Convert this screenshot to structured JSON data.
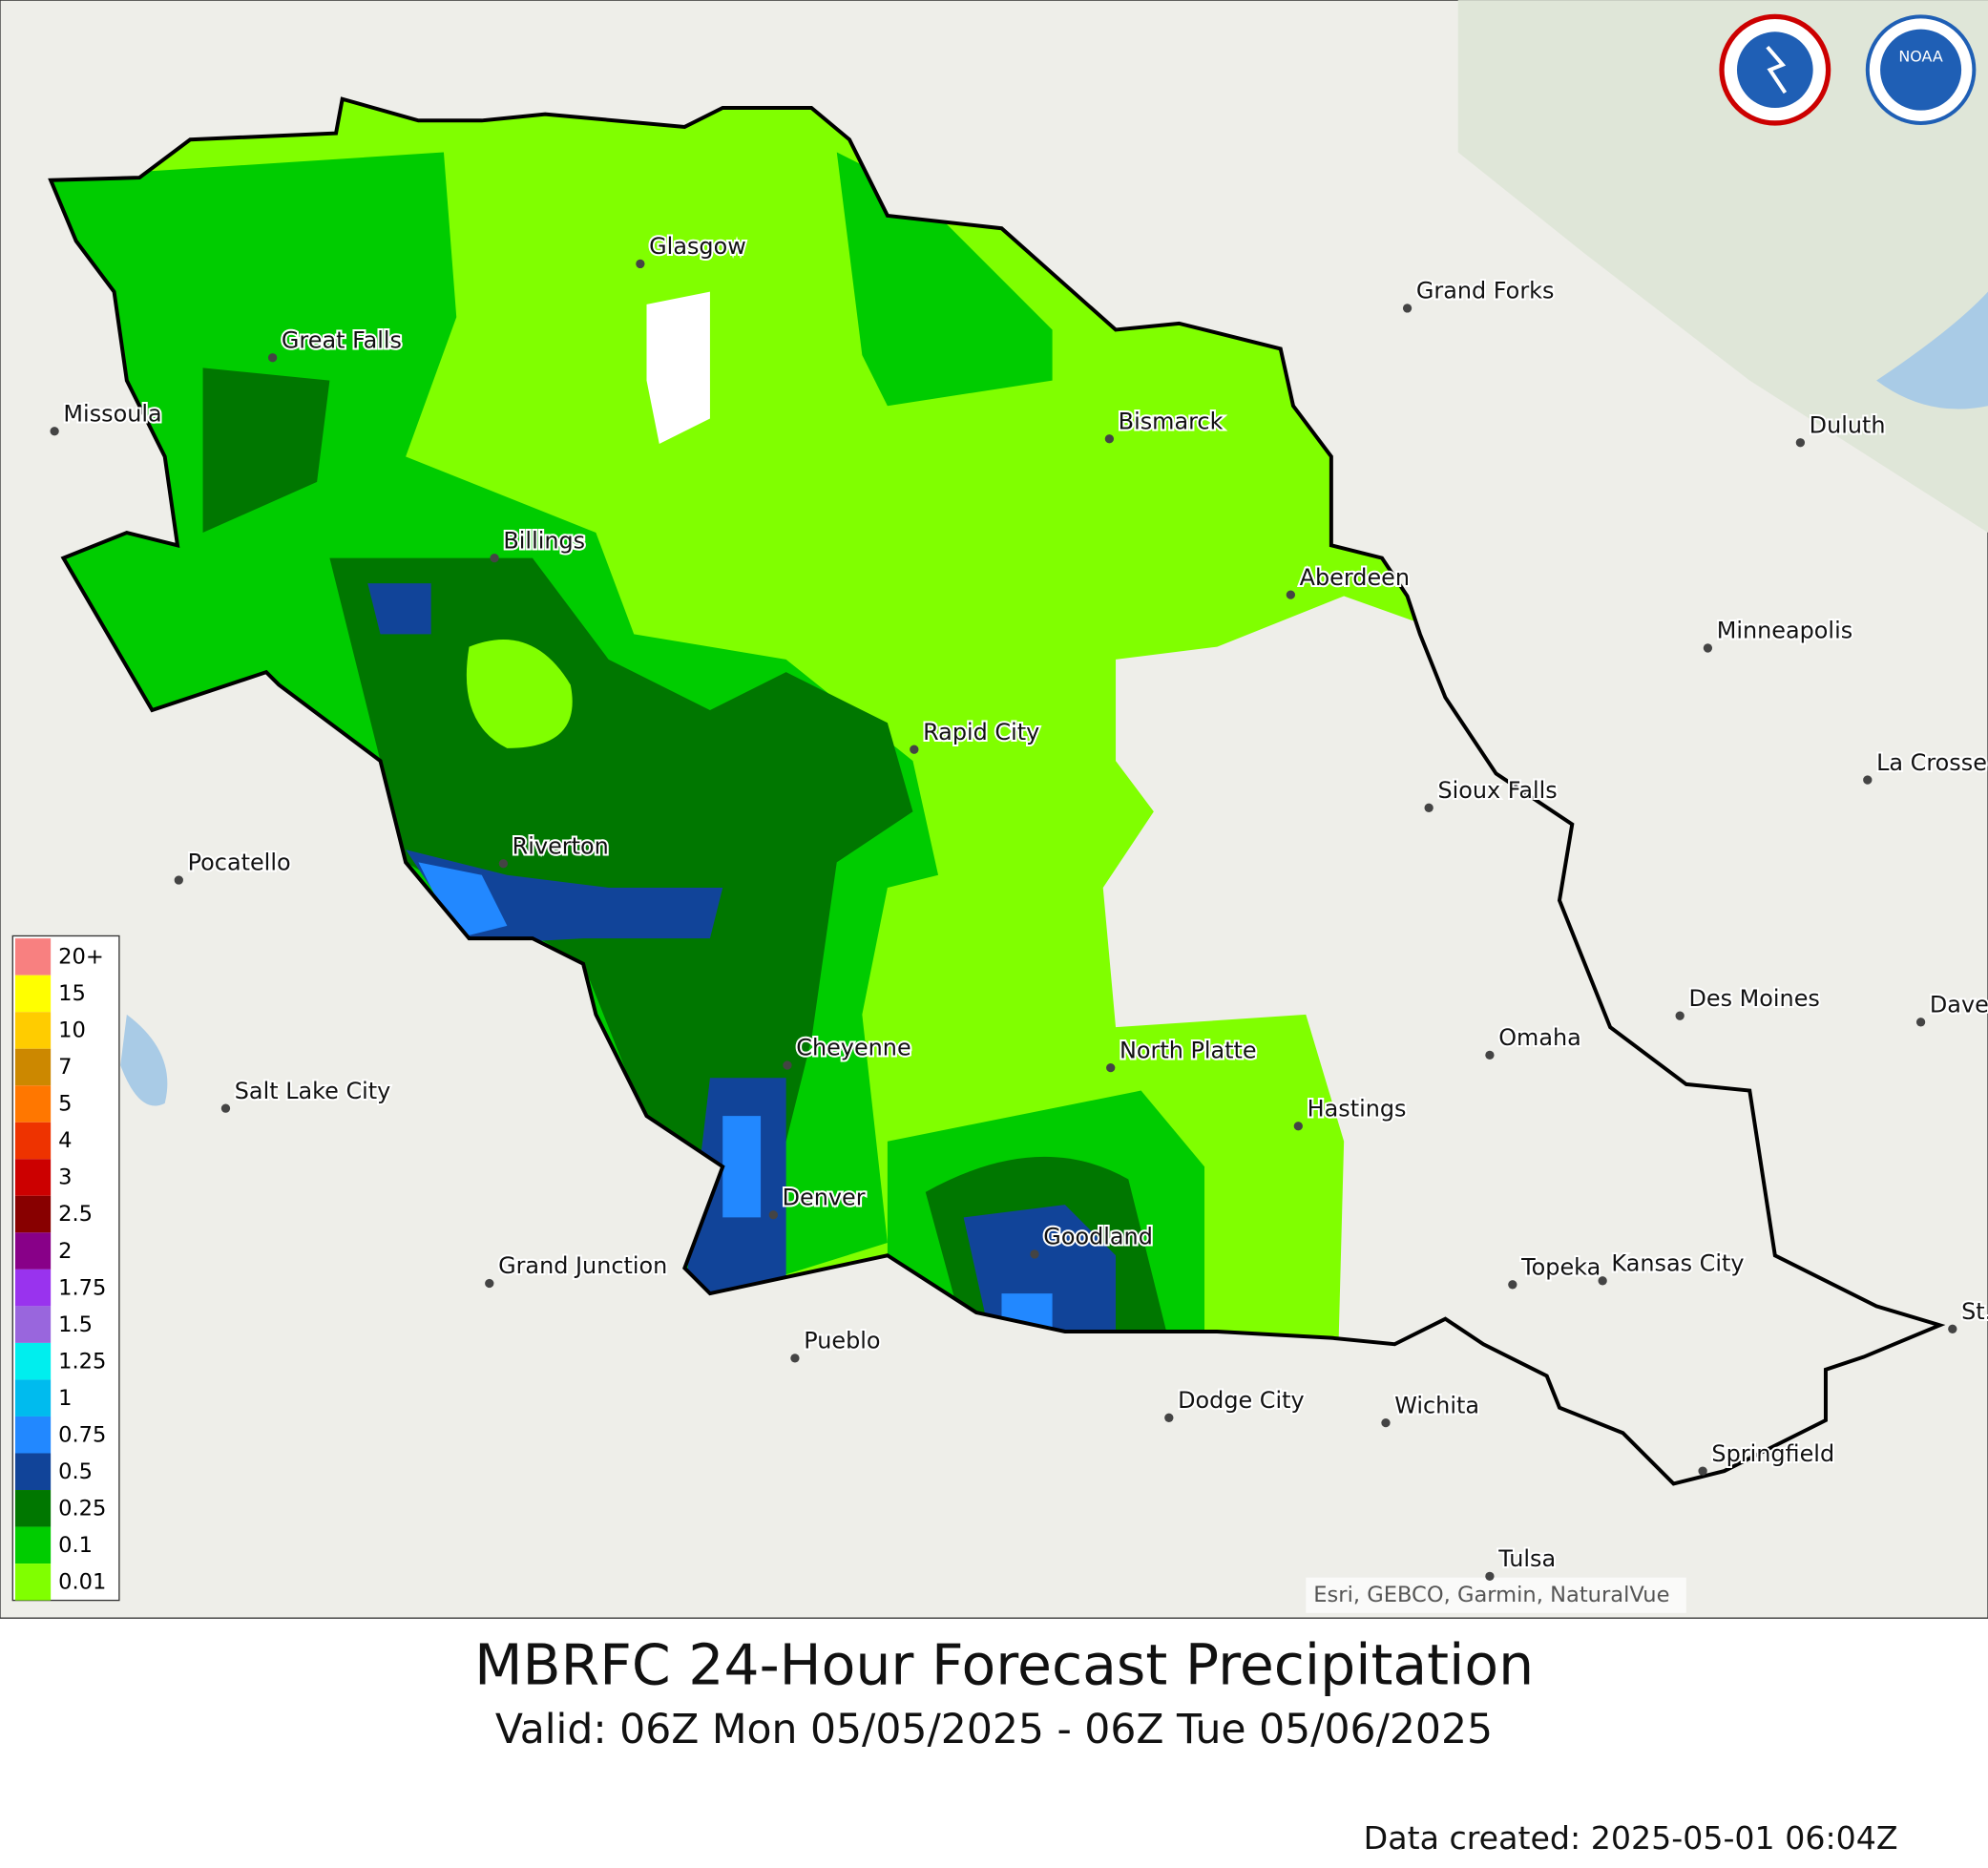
{
  "map": {
    "title": "MBRFC 24-Hour Forecast Precipitation",
    "subtitle": "Valid: 06Z Mon 05/05/2025 - 06Z Tue 05/06/2025",
    "data_created": "Data created: 2025-05-01 06:04Z",
    "attribution": "Esri, GEBCO, Garmin, NaturalVue",
    "cities": [
      "Glasgow",
      "Grand Forks",
      "Great Falls",
      "Missoula",
      "Bismarck",
      "Duluth",
      "Billings",
      "Aberdeen",
      "Minneapolis",
      "Rapid City",
      "Sioux Falls",
      "La Crosse",
      "Riverton",
      "Pocatello",
      "Des Moines",
      "Davenport",
      "Omaha",
      "Cheyenne",
      "North Platte",
      "Salt Lake City",
      "Hastings",
      "Denver",
      "Goodland",
      "Grand Junction",
      "Topeka",
      "Kansas City",
      "St. Louis",
      "Pueblo",
      "Dodge City",
      "Wichita",
      "Springfield",
      "Tulsa"
    ],
    "legend": [
      {
        "label": "20+",
        "color": "#f88080"
      },
      {
        "label": "15",
        "color": "#ffff00"
      },
      {
        "label": "10",
        "color": "#ffcc00"
      },
      {
        "label": "7",
        "color": "#cc8800"
      },
      {
        "label": "5",
        "color": "#ff7700"
      },
      {
        "label": "4",
        "color": "#ee3300"
      },
      {
        "label": "3",
        "color": "#cc0000"
      },
      {
        "label": "2.5",
        "color": "#880000"
      },
      {
        "label": "2",
        "color": "#880088"
      },
      {
        "label": "1.75",
        "color": "#9933ee"
      },
      {
        "label": "1.5",
        "color": "#9966dd"
      },
      {
        "label": "1.25",
        "color": "#00eeee"
      },
      {
        "label": "1",
        "color": "#00bbee"
      },
      {
        "label": "0.75",
        "color": "#2288ff"
      },
      {
        "label": "0.5",
        "color": "#114499"
      },
      {
        "label": "0.25",
        "color": "#007700"
      },
      {
        "label": "0.1",
        "color": "#00cc00"
      },
      {
        "label": "0.01",
        "color": "#80ff00"
      }
    ]
  }
}
